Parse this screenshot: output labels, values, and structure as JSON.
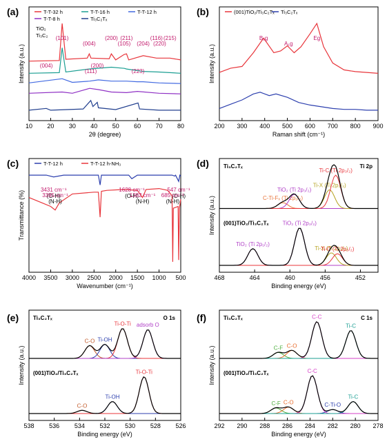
{
  "chart_data": [
    {
      "panel": "(a)",
      "type": "line",
      "xlabel": "2θ (degree)",
      "ylabel": "Intensity (a.u.)",
      "xlim": [
        10,
        80
      ],
      "xticks": [
        "10",
        "20",
        "30",
        "40",
        "50",
        "60",
        "70",
        "80"
      ],
      "grid": false,
      "legend_position": "top",
      "series": [
        {
          "name": "T-T-32 h",
          "color": "#e8343a",
          "x": [
            10,
            24,
            25.3,
            27,
            36.9,
            37.8,
            38.6,
            47,
            48,
            50,
            53.9,
            55,
            56,
            62.7,
            68.8,
            70.3,
            75,
            80
          ],
          "y": [
            0.93,
            0.94,
            1.55,
            0.96,
            0.98,
            1.05,
            0.98,
            0.97,
            1.05,
            0.95,
            1.04,
            1.05,
            0.95,
            1.02,
            0.98,
            0.98,
            0.98,
            0.95
          ]
        },
        {
          "name": "T-T-16 h",
          "color": "#1a9e92",
          "x": [
            10,
            24,
            25.3,
            27,
            37.8,
            48,
            54,
            55,
            62.7,
            70,
            75,
            80
          ],
          "y": [
            0.73,
            0.74,
            1.15,
            0.75,
            0.8,
            0.83,
            0.81,
            0.8,
            0.76,
            0.75,
            0.74,
            0.73
          ]
        },
        {
          "name": "T-T-12 h",
          "color": "#4169e1",
          "x": [
            10,
            25.3,
            30,
            38,
            42,
            48,
            55,
            60,
            62.7,
            70,
            80
          ],
          "y": [
            0.57,
            0.64,
            0.58,
            0.6,
            0.62,
            0.6,
            0.6,
            0.59,
            0.59,
            0.57,
            0.56
          ]
        },
        {
          "name": "T-T-8 h",
          "color": "#8e2fc4",
          "x": [
            10,
            25.3,
            30,
            38,
            42,
            48,
            55,
            60,
            70,
            80
          ],
          "y": [
            0.4,
            0.42,
            0.4,
            0.48,
            0.46,
            0.42,
            0.41,
            0.43,
            0.4,
            0.39
          ]
        },
        {
          "name": "Ti₃C₂Tₓ",
          "color": "#203e8e",
          "x": [
            10,
            18,
            20,
            35,
            38.5,
            39.5,
            41.5,
            42,
            50,
            60.3,
            61,
            70,
            80
          ],
          "y": [
            0.12,
            0.15,
            0.12,
            0.14,
            0.28,
            0.18,
            0.25,
            0.16,
            0.13,
            0.24,
            0.14,
            0.12,
            0.12
          ]
        }
      ],
      "marker_legend": [
        "TiO₂",
        "Ti₃C₂"
      ],
      "tio2_peak_labels": [
        {
          "label": "(101)",
          "x": 25.3
        },
        {
          "label": "(004)",
          "x": 37.8
        },
        {
          "label": "(200)",
          "x": 48
        },
        {
          "label": "(105)",
          "x": 53.9
        },
        {
          "label": "(211)",
          "x": 55
        },
        {
          "label": "(204)",
          "x": 62.7
        },
        {
          "label": "(116)",
          "x": 68.8
        },
        {
          "label": "(220)",
          "x": 70.3
        },
        {
          "label": "(215)",
          "x": 75
        }
      ],
      "ti3c2_peak_labels": [
        {
          "label": "(004)",
          "x": 18
        },
        {
          "label": "(111)",
          "x": 38.5
        },
        {
          "label": "(200)",
          "x": 41.5
        },
        {
          "label": "(223)",
          "x": 60.3
        }
      ]
    },
    {
      "panel": "(b)",
      "type": "line",
      "xlabel": "Raman shift (cm⁻¹)",
      "ylabel": "Intensity (a.u.)",
      "xlim": [
        200,
        900
      ],
      "xticks": [
        "200",
        "300",
        "400",
        "500",
        "600",
        "700",
        "800",
        "900"
      ],
      "grid": false,
      "series": [
        {
          "name": "(001)TiO₂/Ti₃C₂Tₓ",
          "color": "#e8343a",
          "x": [
            200,
            250,
            300,
            350,
            395,
            440,
            470,
            500,
            530,
            560,
            600,
            630,
            660,
            700,
            750,
            800,
            850,
            900
          ],
          "y": [
            0.55,
            0.6,
            0.62,
            0.78,
            0.95,
            0.78,
            0.8,
            0.86,
            0.78,
            0.85,
            1.0,
            1.12,
            0.85,
            0.66,
            0.58,
            0.56,
            0.55,
            0.54
          ]
        },
        {
          "name": "Ti₃C₂Tₓ",
          "color": "#2c3fae",
          "x": [
            200,
            250,
            300,
            350,
            380,
            420,
            450,
            500,
            550,
            600,
            650,
            700,
            750,
            800,
            850,
            900
          ],
          "y": [
            0.13,
            0.18,
            0.23,
            0.3,
            0.32,
            0.28,
            0.3,
            0.26,
            0.2,
            0.17,
            0.15,
            0.13,
            0.12,
            0.12,
            0.11,
            0.11
          ]
        }
      ],
      "peak_labels": [
        {
          "label": "B₁g",
          "x": 395
        },
        {
          "label": "A₁g",
          "x": 505
        },
        {
          "label": "Eg",
          "x": 630
        }
      ]
    },
    {
      "panel": "(c)",
      "type": "line",
      "xlabel": "Wavenumber (cm⁻¹)",
      "ylabel": "Transmittance (%)",
      "xlim": [
        4000,
        500
      ],
      "xticks": [
        "4000",
        "3500",
        "3000",
        "2500",
        "2000",
        "1500",
        "1000",
        "500"
      ],
      "grid": false,
      "legend_position": "top-left",
      "series": [
        {
          "name": "T-T-12 h",
          "color": "#2c3fae",
          "x": [
            4000,
            3600,
            3431,
            3200,
            2400,
            2360,
            2330,
            1700,
            1628,
            1500,
            1000,
            700,
            640,
            620,
            547,
            520,
            500
          ],
          "y": [
            0.97,
            0.97,
            0.95,
            0.97,
            0.97,
            0.86,
            0.97,
            0.97,
            0.93,
            0.97,
            0.97,
            0.97,
            0.96,
            0.97,
            0.9,
            0.97,
            0.96
          ]
        },
        {
          "name": "T-T-12 h-NH₃",
          "color": "#e8343a",
          "x": [
            4000,
            3700,
            3500,
            3395,
            3300,
            3000,
            2500,
            2400,
            2360,
            2330,
            2200,
            1800,
            1500,
            1382,
            1300,
            1000,
            800,
            700,
            685,
            670,
            560,
            547,
            530,
            500
          ],
          "y": [
            0.72,
            0.66,
            0.62,
            0.58,
            0.66,
            0.76,
            0.78,
            0.78,
            0.5,
            0.79,
            0.8,
            0.81,
            0.8,
            0.72,
            0.81,
            0.82,
            0.8,
            0.74,
            0.0,
            0.6,
            0.62,
            0.02,
            0.6,
            0.7
          ]
        }
      ],
      "annotations": [
        {
          "label": "3431 cm⁻¹",
          "sub": "(O-H)",
          "x": 3431
        },
        {
          "label": "3395 cm⁻¹",
          "sub": "(N-H)",
          "x": 3395
        },
        {
          "label": "1628 cm⁻¹",
          "sub": "(O-H)",
          "x": 1628
        },
        {
          "label": "1382 cm⁻¹",
          "sub": "(N-H)",
          "x": 1382
        },
        {
          "label": "547 cm⁻¹",
          "sub": "(O-H)",
          "x": 547
        },
        {
          "label": "685 cm⁻¹",
          "sub": "(N-H)",
          "x": 685
        }
      ]
    },
    {
      "panel": "(d)",
      "type": "line",
      "title": "Ti 2p",
      "xlabel": "Binding energy (eV)",
      "ylabel": "Intensity (a.u.)",
      "xlim": [
        468,
        450
      ],
      "xticks": [
        "468",
        "464",
        "460",
        "456",
        "452"
      ],
      "grid": false,
      "subpanels": [
        {
          "label": "Ti₃C₂Tₓ",
          "components": [
            {
              "name": "C-Ti-Fₓ (Ti 2p₁/₂)",
              "color": "#e8743a",
              "center": 460.8,
              "height": 0.14
            },
            {
              "name": "TiO₂ (Ti 2p₃/₂)",
              "color": "#b03fc7",
              "center": 459.5,
              "height": 0.34
            },
            {
              "name": "Ti-X (Ti 2p₃/₂)",
              "color": "#b5a21f",
              "center": 455.5,
              "height": 0.45
            },
            {
              "name": "Ti-C (Ti 2p₃/₂)",
              "color": "#e8343a",
              "center": 454.8,
              "height": 0.8
            }
          ]
        },
        {
          "label": "(001)TiO₂/Ti₃C₂Tₓ",
          "components": [
            {
              "name": "TiO₂ (Ti 2p₁/₂)",
              "color": "#b03fc7",
              "center": 464.2,
              "height": 0.4
            },
            {
              "name": "TiO₂ (Ti 2p₃/₂)",
              "color": "#b03fc7",
              "center": 458.9,
              "height": 0.9
            },
            {
              "name": "Ti-X (Ti 2p₃/₂)",
              "color": "#b5a21f",
              "center": 455.3,
              "height": 0.3
            },
            {
              "name": "Ti-C (Ti 2p₃/₂)",
              "color": "#e8343a",
              "center": 454.6,
              "height": 0.28
            }
          ]
        }
      ]
    },
    {
      "panel": "(e)",
      "type": "line",
      "title": "O 1s",
      "xlabel": "Binding energy (eV)",
      "ylabel": "Intensity (a.u.)",
      "xlim": [
        538,
        526
      ],
      "xticks": [
        "538",
        "536",
        "534",
        "532",
        "530",
        "528",
        "526"
      ],
      "grid": false,
      "subpanels": [
        {
          "label": "Ti₃C₂Tₓ",
          "components": [
            {
              "name": "C-O",
              "color": "#c25a2a",
              "center": 533.2,
              "height": 0.32
            },
            {
              "name": "Ti-OH",
              "color": "#2c3fae",
              "center": 532.0,
              "height": 0.35
            },
            {
              "name": "Ti-O-Ti",
              "color": "#e8343a",
              "center": 530.6,
              "height": 0.75
            },
            {
              "name": "adsorb O",
              "color": "#b03fc7",
              "center": 528.6,
              "height": 0.72
            }
          ]
        },
        {
          "label": "(001)TiO₂/Ti₃C₂Tₓ",
          "components": [
            {
              "name": "C-O",
              "color": "#c25a2a",
              "center": 533.8,
              "height": 0.08
            },
            {
              "name": "Ti-OH",
              "color": "#2c3fae",
              "center": 531.4,
              "height": 0.3
            },
            {
              "name": "Ti-O-Ti",
              "color": "#e8343a",
              "center": 528.9,
              "height": 0.92
            }
          ]
        }
      ]
    },
    {
      "panel": "(f)",
      "type": "line",
      "title": "C 1s",
      "xlabel": "Binding energy (eV)",
      "ylabel": "Intensity (a.u.)",
      "xlim": [
        292,
        278
      ],
      "xticks": [
        "292",
        "290",
        "288",
        "286",
        "284",
        "282",
        "280",
        "278"
      ],
      "grid": false,
      "subpanels": [
        {
          "label": "Ti₃C₂Tₓ",
          "components": [
            {
              "name": "C-F",
              "color": "#4caf3c",
              "center": 286.8,
              "height": 0.15
            },
            {
              "name": "C-O",
              "color": "#e86a2a",
              "center": 285.6,
              "height": 0.2
            },
            {
              "name": "C-C",
              "color": "#d63fc7",
              "center": 283.4,
              "height": 0.92
            },
            {
              "name": "Ti-C",
              "color": "#1a9e92",
              "center": 280.4,
              "height": 0.7
            }
          ]
        },
        {
          "label": "(001)TiO₂/Ti₃C₂Tₓ",
          "components": [
            {
              "name": "C-F",
              "color": "#4caf3c",
              "center": 287.0,
              "height": 0.14
            },
            {
              "name": "C-O",
              "color": "#e86a2a",
              "center": 285.9,
              "height": 0.16
            },
            {
              "name": "C-Ti-O",
              "color": "#2c3fae",
              "center": 282.0,
              "height": 0.1
            },
            {
              "name": "C-C",
              "color": "#d63fc7",
              "center": 283.8,
              "height": 0.95
            },
            {
              "name": "Ti-C",
              "color": "#1a9e92",
              "center": 280.2,
              "height": 0.3
            }
          ]
        }
      ]
    }
  ]
}
